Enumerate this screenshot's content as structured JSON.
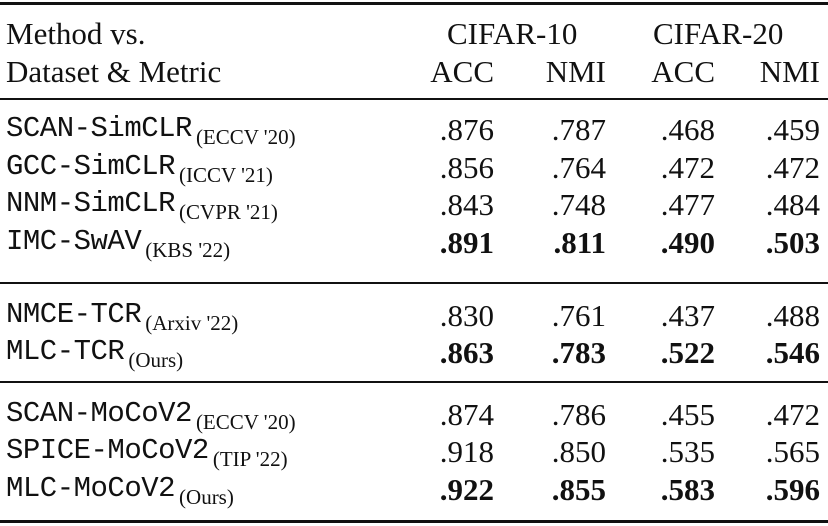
{
  "header": {
    "method_label_line1": "Method vs.",
    "method_label_line2": "Dataset & Metric",
    "datasets": [
      "CIFAR-10",
      "CIFAR-20"
    ],
    "metrics": [
      "ACC",
      "NMI",
      "ACC",
      "NMI"
    ]
  },
  "groups": [
    {
      "rows": [
        {
          "method": "SCAN-SimCLR",
          "venue": "(ECCV '20)",
          "values": [
            ".876",
            ".787",
            ".468",
            ".459"
          ],
          "bold": false
        },
        {
          "method": "GCC-SimCLR",
          "venue": "(ICCV '21)",
          "values": [
            ".856",
            ".764",
            ".472",
            ".472"
          ],
          "bold": false
        },
        {
          "method": "NNM-SimCLR",
          "venue": "(CVPR '21)",
          "values": [
            ".843",
            ".748",
            ".477",
            ".484"
          ],
          "bold": false
        },
        {
          "method": "IMC-SwAV",
          "venue": "(KBS '22)",
          "values": [
            ".891",
            ".811",
            ".490",
            ".503"
          ],
          "bold": true
        }
      ]
    },
    {
      "rows": [
        {
          "method": "NMCE-TCR",
          "venue": "(Arxiv '22)",
          "values": [
            ".830",
            ".761",
            ".437",
            ".488"
          ],
          "bold": false
        },
        {
          "method": "MLC-TCR",
          "venue": "(Ours)",
          "values": [
            ".863",
            ".783",
            ".522",
            ".546"
          ],
          "bold": true
        }
      ]
    },
    {
      "rows": [
        {
          "method": "SCAN-MoCoV2",
          "venue": "(ECCV '20)",
          "values": [
            ".874",
            ".786",
            ".455",
            ".472"
          ],
          "bold": false
        },
        {
          "method": "SPICE-MoCoV2",
          "venue": "(TIP '22)",
          "values": [
            ".918",
            ".850",
            ".535",
            ".565"
          ],
          "bold": false
        },
        {
          "method": "MLC-MoCoV2",
          "venue": "(Ours)",
          "values": [
            ".922",
            ".855",
            ".583",
            ".596"
          ],
          "bold": true
        }
      ]
    }
  ]
}
